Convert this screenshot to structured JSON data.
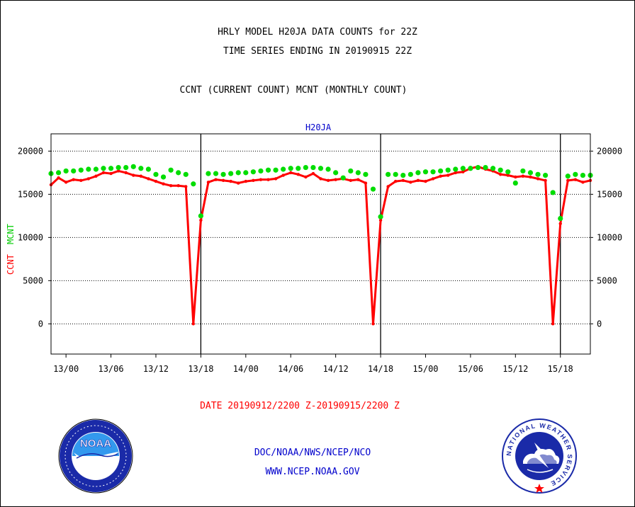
{
  "header": {
    "title_line1": "HRLY MODEL H20JA DATA COUNTS for 22Z",
    "title_line2": "TIME SERIES ENDING IN 20190915 22Z",
    "subtitle": "CCNT (CURRENT COUNT) MCNT (MONTHLY COUNT)"
  },
  "footer": {
    "date_range": "DATE 20190912/2200 Z-20190915/2200 Z",
    "doc_line": "DOC/NOAA/NWS/NCEP/NCO",
    "url_line": "WWW.NCEP.NOAA.GOV"
  },
  "logos": {
    "noaa_text": "NOAA",
    "nws_text": "NATIONAL WEATHER SERVICE"
  },
  "colors": {
    "ccnt": "#ff0000",
    "mcnt": "#00dd00",
    "text_blue": "#0000cc"
  },
  "chart_data": {
    "type": "line",
    "title": "H20JA",
    "ylabel_left_ccnt": "CCNT",
    "ylabel_left_mcnt": "MCNT",
    "x_axis": "hours from 2019-09-12 22Z",
    "xlim": [
      0,
      72
    ],
    "ylim": [
      -3500,
      22000
    ],
    "y_ticks": [
      0,
      5000,
      10000,
      15000,
      20000
    ],
    "x_ticks": [
      {
        "x": 2,
        "label": "13/00"
      },
      {
        "x": 8,
        "label": "13/06"
      },
      {
        "x": 14,
        "label": "13/12"
      },
      {
        "x": 20,
        "label": "13/18"
      },
      {
        "x": 26,
        "label": "14/00"
      },
      {
        "x": 32,
        "label": "14/06"
      },
      {
        "x": 38,
        "label": "14/12"
      },
      {
        "x": 44,
        "label": "14/18"
      },
      {
        "x": 50,
        "label": "15/00"
      },
      {
        "x": 56,
        "label": "15/06"
      },
      {
        "x": 62,
        "label": "15/12"
      },
      {
        "x": 68,
        "label": "15/18"
      }
    ],
    "day_boundaries": [
      20,
      44,
      68
    ],
    "grid": true,
    "series": [
      {
        "name": "CCNT",
        "color": "#ff0000",
        "values": [
          16100,
          16900,
          16400,
          16700,
          16600,
          16800,
          17100,
          17500,
          17400,
          17700,
          17500,
          17200,
          17100,
          16800,
          16500,
          16200,
          16000,
          16000,
          15900,
          0,
          12000,
          16400,
          16700,
          16600,
          16500,
          16300,
          16500,
          16600,
          16700,
          16700,
          16800,
          17200,
          17500,
          17300,
          17000,
          17400,
          16800,
          16600,
          16700,
          16800,
          16600,
          16700,
          16300,
          0,
          12000,
          15900,
          16500,
          16600,
          16400,
          16600,
          16500,
          16800,
          17100,
          17200,
          17500,
          17600,
          18000,
          18200,
          17900,
          17700,
          17300,
          17200,
          17000,
          17100,
          17000,
          16800,
          16600,
          0,
          11600,
          16600,
          16700,
          16400,
          16600
        ]
      },
      {
        "name": "MCNT",
        "color": "#00dd00",
        "values": [
          17400,
          17500,
          17700,
          17700,
          17800,
          17900,
          17900,
          18000,
          18000,
          18100,
          18100,
          18200,
          18000,
          17900,
          17300,
          17000,
          17800,
          17500,
          17300,
          16200,
          12500,
          17400,
          17400,
          17300,
          17400,
          17500,
          17500,
          17600,
          17700,
          17800,
          17800,
          17900,
          18000,
          18000,
          18100,
          18100,
          18000,
          17900,
          17500,
          16900,
          17700,
          17500,
          17300,
          15600,
          12400,
          17300,
          17300,
          17200,
          17300,
          17500,
          17600,
          17600,
          17700,
          17800,
          17900,
          18000,
          18000,
          18100,
          18100,
          18000,
          17800,
          17600,
          16300,
          17700,
          17500,
          17300,
          17200,
          15200,
          12200,
          17100,
          17300,
          17200,
          17200
        ]
      }
    ]
  }
}
